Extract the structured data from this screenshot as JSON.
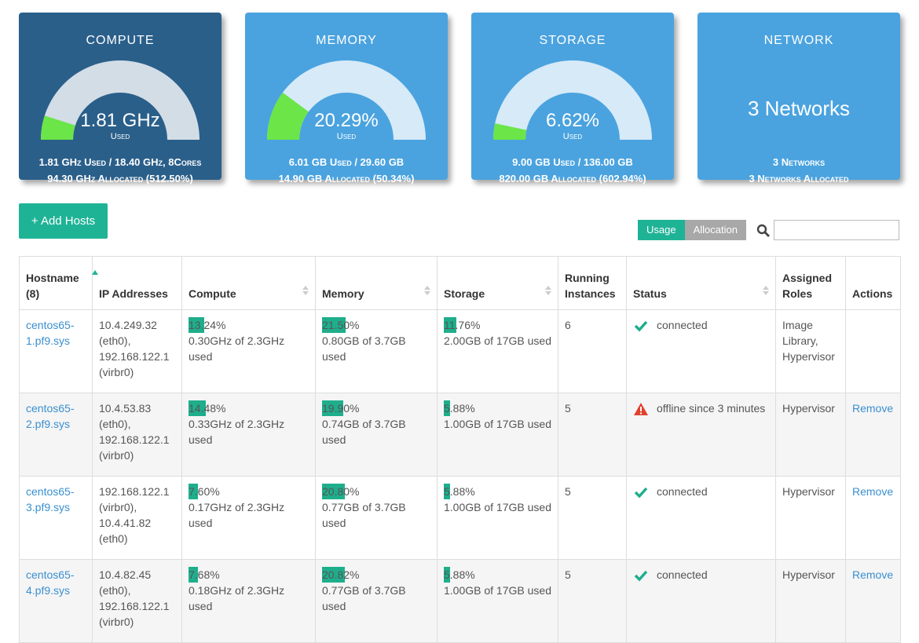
{
  "cards": [
    {
      "title": "COMPUTE",
      "value": "1.81 GHz",
      "value_caption": "Used",
      "line1": "1.81 GHz Used / 18.40 GHz, 8Cores",
      "line2": "94.30 GHz Allocated (512.50%)",
      "gauge_used": 1.81,
      "gauge_total": 18.4,
      "dark": true
    },
    {
      "title": "MEMORY",
      "value": "20.29%",
      "value_caption": "Used",
      "line1": "6.01 GB Used / 29.60 GB",
      "line2": "14.90 GB Allocated (50.34%)",
      "gauge_used": 6.01,
      "gauge_total": 29.6,
      "dark": false
    },
    {
      "title": "STORAGE",
      "value": "6.62%",
      "value_caption": "Used",
      "line1": "9.00 GB Used / 136.00 GB",
      "line2": "820.00 GB Allocated (602.94%)",
      "gauge_used": 9.0,
      "gauge_total": 136.0,
      "dark": false
    },
    {
      "title": "NETWORK",
      "value": "3 Networks",
      "line1": "3 Networks",
      "line2": "3 Networks Allocated",
      "dark": false
    }
  ],
  "add_button": "+ Add Hosts",
  "toggle": [
    "Usage",
    "Allocation"
  ],
  "table": {
    "headers": [
      "Hostname (8)",
      "IP Addresses",
      "Compute",
      "Memory",
      "Storage",
      "Running Instances",
      "Status",
      "Assigned Roles",
      "Actions"
    ],
    "rows": [
      {
        "hostname": "centos65-1.pf9.sys",
        "ip": "10.4.249.32 (eth0), 192.168.122.1 (virbr0)",
        "compute": {
          "value": 13.24,
          "label": "13.24%",
          "detail": "0.30GHz of 2.3GHz used"
        },
        "memory": {
          "value": 21.5,
          "label": "21.50%",
          "detail": "0.80GB of 3.7GB used"
        },
        "storage": {
          "value": 11.76,
          "label": "11.76%",
          "detail": "2.00GB of 17GB used"
        },
        "instances": 6,
        "status": "connected",
        "status_ok": true,
        "roles": "Image Library, Hypervisor",
        "action": null
      },
      {
        "hostname": "centos65-2.pf9.sys",
        "ip": "10.4.53.83 (eth0), 192.168.122.1 (virbr0)",
        "compute": {
          "value": 14.48,
          "label": "14.48%",
          "detail": "0.33GHz of 2.3GHz used"
        },
        "memory": {
          "value": 19.9,
          "label": "19.90%",
          "detail": "0.74GB of 3.7GB used"
        },
        "storage": {
          "value": 5.88,
          "label": "5.88%",
          "detail": "1.00GB of 17GB used"
        },
        "instances": 5,
        "status": "offline since 3 minutes",
        "status_ok": false,
        "roles": "Hypervisor",
        "action": "Remove"
      },
      {
        "hostname": "centos65-3.pf9.sys",
        "ip": "192.168.122.1 (virbr0), 10.4.41.82 (eth0)",
        "compute": {
          "value": 7.6,
          "label": "7.60%",
          "detail": "0.17GHz of 2.3GHz used"
        },
        "memory": {
          "value": 20.8,
          "label": "20.80%",
          "detail": "0.77GB of 3.7GB used"
        },
        "storage": {
          "value": 5.88,
          "label": "5.88%",
          "detail": "1.00GB of 17GB used"
        },
        "instances": 5,
        "status": "connected",
        "status_ok": true,
        "roles": "Hypervisor",
        "action": "Remove"
      },
      {
        "hostname": "centos65-4.pf9.sys",
        "ip": "10.4.82.45 (eth0), 192.168.122.1 (virbr0)",
        "compute": {
          "value": 7.68,
          "label": "7.68%",
          "detail": "0.18GHz of 2.3GHz used"
        },
        "memory": {
          "value": 20.82,
          "label": "20.82%",
          "detail": "0.77GB of 3.7GB used"
        },
        "storage": {
          "value": 5.88,
          "label": "5.88%",
          "detail": "1.00GB of 17GB used"
        },
        "instances": 5,
        "status": "connected",
        "status_ok": true,
        "roles": "Hypervisor",
        "action": "Remove"
      }
    ]
  }
}
